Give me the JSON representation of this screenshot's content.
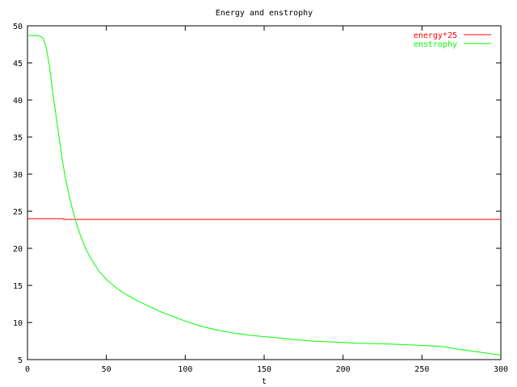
{
  "chart_data": {
    "type": "line",
    "title": "Energy and enstrophy",
    "xlabel": "t",
    "ylabel": "",
    "xlim": [
      0,
      300
    ],
    "ylim": [
      5,
      50
    ],
    "x_ticks": [
      0,
      50,
      100,
      150,
      200,
      250,
      300
    ],
    "y_ticks": [
      5,
      10,
      15,
      20,
      25,
      30,
      35,
      40,
      45,
      50
    ],
    "grid": false,
    "legend_position": "top-right",
    "series": [
      {
        "name": "energy*25",
        "color": "#ff0000",
        "x": [
          0,
          23,
          23,
          300
        ],
        "y": [
          24.0,
          24.0,
          23.9,
          23.9
        ]
      },
      {
        "name": "enstrophy",
        "color": "#00ff00",
        "x": [
          0,
          5,
          8,
          10,
          12,
          14,
          16,
          18,
          20,
          22,
          24,
          26,
          28,
          30,
          32,
          34,
          36,
          38,
          40,
          45,
          50,
          55,
          60,
          65,
          70,
          75,
          80,
          85,
          90,
          95,
          100,
          110,
          120,
          130,
          140,
          150,
          160,
          170,
          180,
          190,
          200,
          210,
          220,
          230,
          240,
          250,
          255,
          260,
          265,
          270,
          280,
          290,
          300
        ],
        "y": [
          48.7,
          48.7,
          48.6,
          48.3,
          47.0,
          44.5,
          41.0,
          38.0,
          35.0,
          32.0,
          29.5,
          27.5,
          25.7,
          24.1,
          22.7,
          21.5,
          20.4,
          19.5,
          18.7,
          17.0,
          15.8,
          14.9,
          14.1,
          13.5,
          12.9,
          12.4,
          11.9,
          11.4,
          11.0,
          10.6,
          10.2,
          9.5,
          9.0,
          8.6,
          8.3,
          8.1,
          7.9,
          7.7,
          7.5,
          7.4,
          7.3,
          7.2,
          7.15,
          7.1,
          7.0,
          6.9,
          6.85,
          6.8,
          6.7,
          6.5,
          6.2,
          5.9,
          5.6
        ]
      }
    ]
  }
}
